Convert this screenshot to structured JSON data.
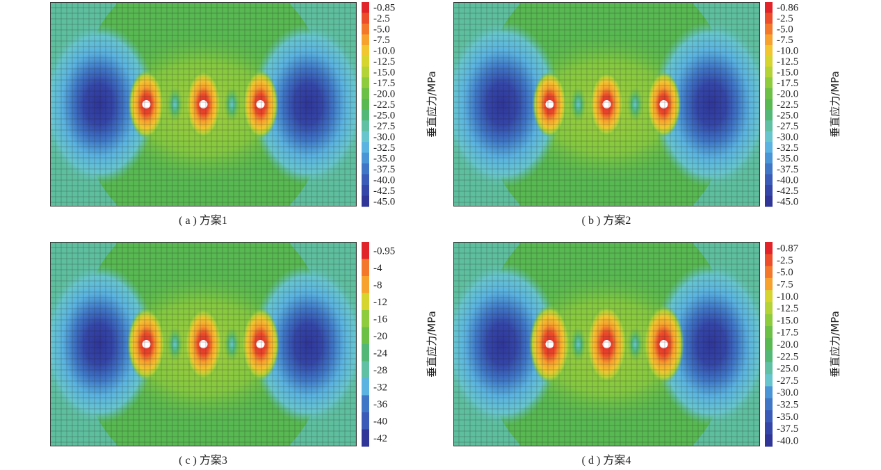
{
  "chart_data": [
    {
      "type": "heatmap",
      "id": "a",
      "caption": "( a ) 方案1",
      "colorbar_label": "垂直应力/MPa",
      "colorbar_ticks": [
        "-0.85",
        "-2.5",
        "-5.0",
        "-7.5",
        "-10.0",
        "-12.5",
        "-15.0",
        "-17.5",
        "-20.0",
        "-22.5",
        "-25.0",
        "-27.5",
        "-30.0",
        "-32.5",
        "-35.0",
        "-37.5",
        "-40.0",
        "-42.5",
        "-45.0"
      ],
      "colorbar_range": [
        -45.0,
        -0.85
      ],
      "holes": 3,
      "blue_zone_intensity": 0.85,
      "hole_zone_intensity": 0.45
    },
    {
      "type": "heatmap",
      "id": "b",
      "caption": "( b ) 方案2",
      "colorbar_label": "垂直应力/MPa",
      "colorbar_ticks": [
        "-0.86",
        "-2.5",
        "-5.0",
        "-7.5",
        "-10.0",
        "-12.5",
        "-15.0",
        "-17.5",
        "-20.0",
        "-22.5",
        "-25.0",
        "-27.5",
        "-30.0",
        "-32.5",
        "-35.0",
        "-37.5",
        "-40.0",
        "-42.5",
        "-45.0"
      ],
      "colorbar_range": [
        -45.0,
        -0.86
      ],
      "holes": 3,
      "blue_zone_intensity": 1.0,
      "hole_zone_intensity": 0.35
    },
    {
      "type": "heatmap",
      "id": "c",
      "caption": "( c ) 方案3",
      "colorbar_label": "垂直应力/MPa",
      "colorbar_ticks": [
        "-0.95",
        "-4",
        "-8",
        "-12",
        "-16",
        "-20",
        "-24",
        "-28",
        "-32",
        "-36",
        "-40",
        "-42"
      ],
      "colorbar_range": [
        -42,
        -0.95
      ],
      "holes": 3,
      "blue_zone_intensity": 0.8,
      "hole_zone_intensity": 0.6
    },
    {
      "type": "heatmap",
      "id": "d",
      "caption": "( d ) 方案4",
      "colorbar_label": "垂直应力/MPa",
      "colorbar_ticks": [
        "-0.87",
        "-2.5",
        "-5.0",
        "-7.5",
        "-10.0",
        "-12.5",
        "-15.0",
        "-17.5",
        "-20.0",
        "-22.5",
        "-25.0",
        "-27.5",
        "-30.0",
        "-32.5",
        "-35.0",
        "-37.5",
        "-40.0"
      ],
      "colorbar_range": [
        -40.0,
        -0.87
      ],
      "holes": 3,
      "blue_zone_intensity": 0.9,
      "hole_zone_intensity": 0.8
    }
  ],
  "colors": {
    "scale": [
      "#e0242a",
      "#ec4d2a",
      "#f4782c",
      "#f7a12e",
      "#f2c630",
      "#d6d530",
      "#b4d337",
      "#8ecc3d",
      "#6cc046",
      "#58b851",
      "#53b877",
      "#5fc0a3",
      "#67c6cd",
      "#5ab3e0",
      "#4a95d6",
      "#3f77c6",
      "#3a5bb8",
      "#3446a8",
      "#2f3697"
    ],
    "hole": "#ffffff",
    "grid": "#1b1b1b"
  }
}
